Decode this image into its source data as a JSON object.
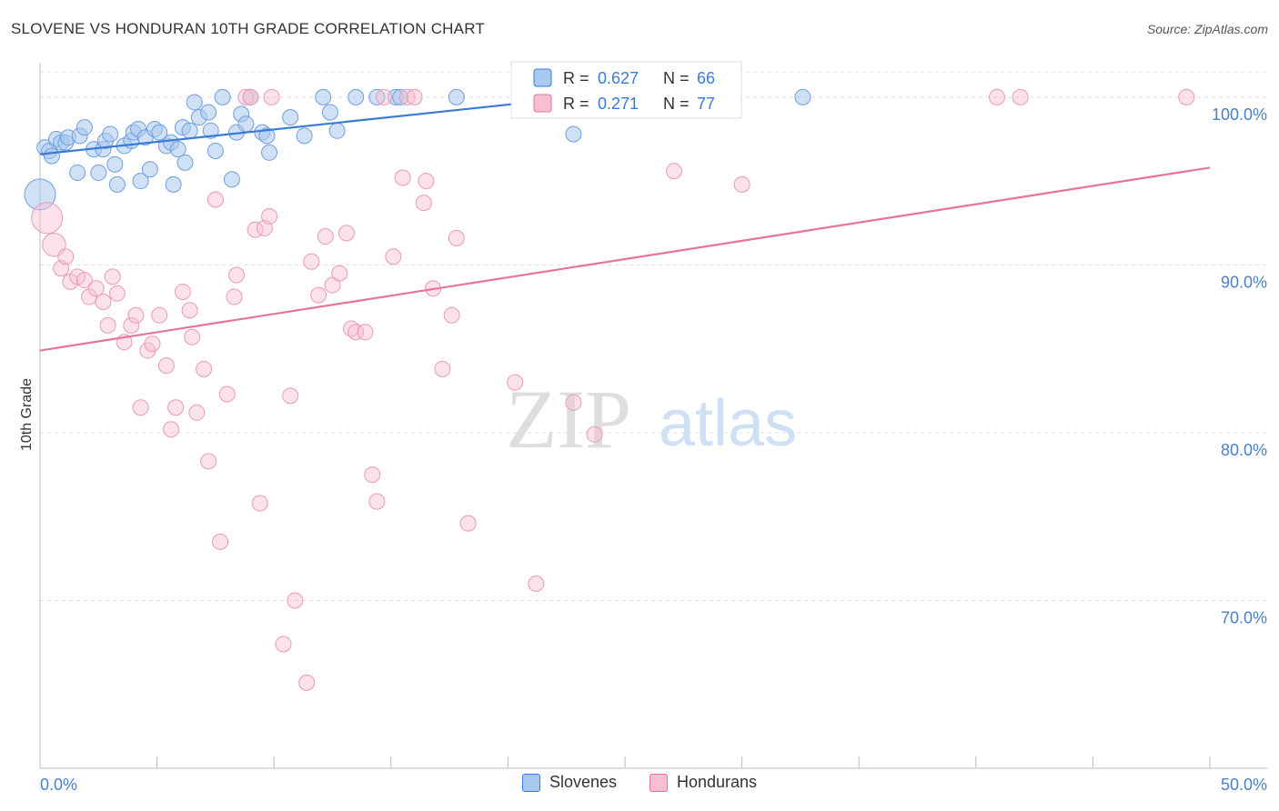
{
  "title": "SLOVENE VS HONDURAN 10TH GRADE CORRELATION CHART",
  "source": "Source: ZipAtlas.com",
  "watermark": {
    "zip": "ZIP",
    "atlas": "atlas"
  },
  "colors": {
    "blue": "#3a7bd5",
    "blue_fill": "#a9c8ef",
    "pink": "#e8739c",
    "pink_fill": "#f7bfd0",
    "axis_label": "#4a7fcc",
    "grid": "#dddddd"
  },
  "chart_data": {
    "type": "scatter",
    "title": "SLOVENE VS HONDURAN 10TH GRADE CORRELATION CHART",
    "xlabel": "",
    "ylabel": "10th Grade",
    "xlim": [
      0,
      50
    ],
    "ylim": [
      60,
      102
    ],
    "x_tick_labels": [
      "0.0%",
      "50.0%"
    ],
    "y_ticks": [
      70,
      80,
      90,
      100
    ],
    "y_tick_labels": [
      "70.0%",
      "80.0%",
      "90.0%",
      "100.0%"
    ],
    "legend_stats": [
      {
        "r_label": "R =",
        "r_value": "0.627",
        "n_label": "N =",
        "n_value": "66"
      },
      {
        "r_label": "R =",
        "r_value": "0.271",
        "n_label": "N =",
        "n_value": "77"
      }
    ],
    "series": [
      {
        "name": "Slovenes",
        "color": "#3a7bd5",
        "trend": {
          "x": [
            0,
            23
          ],
          "y": [
            96.6,
            100.0
          ]
        },
        "points": [
          [
            0.0,
            94.2,
            2
          ],
          [
            0.2,
            97.0,
            1
          ],
          [
            0.4,
            96.8,
            1
          ],
          [
            0.5,
            96.5,
            1
          ],
          [
            0.7,
            97.5,
            1
          ],
          [
            0.9,
            97.3,
            1
          ],
          [
            1.1,
            97.3,
            1
          ],
          [
            1.2,
            97.6,
            1
          ],
          [
            1.6,
            95.5,
            1
          ],
          [
            1.7,
            97.7,
            1
          ],
          [
            1.9,
            98.2,
            1
          ],
          [
            2.3,
            96.9,
            1
          ],
          [
            2.5,
            95.5,
            1
          ],
          [
            2.7,
            96.9,
            1
          ],
          [
            2.8,
            97.4,
            1
          ],
          [
            3.0,
            97.8,
            1
          ],
          [
            3.2,
            96.0,
            1
          ],
          [
            3.3,
            94.8,
            1
          ],
          [
            3.6,
            97.1,
            1
          ],
          [
            3.9,
            97.4,
            1
          ],
          [
            4.0,
            97.9,
            1
          ],
          [
            4.2,
            98.1,
            1
          ],
          [
            4.3,
            95.0,
            1
          ],
          [
            4.5,
            97.6,
            1
          ],
          [
            4.7,
            95.7,
            1
          ],
          [
            4.9,
            98.1,
            1
          ],
          [
            5.1,
            97.9,
            1
          ],
          [
            5.4,
            97.1,
            1
          ],
          [
            5.6,
            97.3,
            1
          ],
          [
            5.7,
            94.8,
            1
          ],
          [
            5.9,
            96.9,
            1
          ],
          [
            6.1,
            98.2,
            1
          ],
          [
            6.2,
            96.1,
            1
          ],
          [
            6.4,
            98.0,
            1
          ],
          [
            6.6,
            99.7,
            1
          ],
          [
            6.8,
            98.8,
            1
          ],
          [
            7.2,
            99.1,
            1
          ],
          [
            7.3,
            98.0,
            1
          ],
          [
            7.5,
            96.8,
            1
          ],
          [
            7.8,
            100.0,
            1
          ],
          [
            8.2,
            95.1,
            1
          ],
          [
            8.4,
            97.9,
            1
          ],
          [
            8.6,
            99.0,
            1
          ],
          [
            8.8,
            98.4,
            1
          ],
          [
            9.0,
            100.0,
            1
          ],
          [
            9.5,
            97.9,
            1
          ],
          [
            9.7,
            97.7,
            1
          ],
          [
            9.8,
            96.7,
            1
          ],
          [
            10.7,
            98.8,
            1
          ],
          [
            11.3,
            97.7,
            1
          ],
          [
            12.1,
            100.0,
            1
          ],
          [
            12.4,
            99.1,
            1
          ],
          [
            12.7,
            98.0,
            1
          ],
          [
            13.5,
            100.0,
            1
          ],
          [
            14.4,
            100.0,
            1
          ],
          [
            15.2,
            100.0,
            1
          ],
          [
            15.4,
            100.0,
            1
          ],
          [
            17.8,
            100.0,
            1
          ],
          [
            22.8,
            97.8,
            1
          ],
          [
            32.6,
            100.0,
            1
          ]
        ]
      },
      {
        "name": "Hondurans",
        "color": "#e8739c",
        "trend": {
          "x": [
            0,
            50
          ],
          "y": [
            84.9,
            95.8
          ]
        },
        "points": [
          [
            0.3,
            92.8,
            2
          ],
          [
            0.6,
            91.2,
            1.5
          ],
          [
            0.9,
            89.8,
            1
          ],
          [
            1.1,
            90.5,
            1
          ],
          [
            1.3,
            89.0,
            1
          ],
          [
            1.6,
            89.3,
            1
          ],
          [
            1.9,
            89.1,
            1
          ],
          [
            2.1,
            88.1,
            1
          ],
          [
            2.4,
            88.6,
            1
          ],
          [
            2.7,
            87.8,
            1
          ],
          [
            2.9,
            86.4,
            1
          ],
          [
            3.1,
            89.3,
            1
          ],
          [
            3.3,
            88.3,
            1
          ],
          [
            3.6,
            85.4,
            1
          ],
          [
            3.9,
            86.4,
            1
          ],
          [
            4.1,
            87.0,
            1
          ],
          [
            4.3,
            81.5,
            1
          ],
          [
            4.6,
            84.9,
            1
          ],
          [
            4.8,
            85.3,
            1
          ],
          [
            5.1,
            87.0,
            1
          ],
          [
            5.4,
            84.0,
            1
          ],
          [
            5.6,
            80.2,
            1
          ],
          [
            5.8,
            81.5,
            1
          ],
          [
            6.1,
            88.4,
            1
          ],
          [
            6.4,
            87.3,
            1
          ],
          [
            6.5,
            85.7,
            1
          ],
          [
            6.7,
            81.2,
            1
          ],
          [
            7.0,
            83.8,
            1
          ],
          [
            7.2,
            78.3,
            1
          ],
          [
            7.5,
            93.9,
            1
          ],
          [
            7.7,
            73.5,
            1
          ],
          [
            8.0,
            82.3,
            1
          ],
          [
            8.3,
            88.1,
            1
          ],
          [
            8.4,
            89.4,
            1
          ],
          [
            8.8,
            100.0,
            1
          ],
          [
            9.0,
            100.0,
            1
          ],
          [
            9.2,
            92.1,
            1
          ],
          [
            9.4,
            75.8,
            1
          ],
          [
            9.6,
            92.2,
            1
          ],
          [
            9.8,
            92.9,
            1
          ],
          [
            9.9,
            100.0,
            1
          ],
          [
            10.4,
            67.4,
            1
          ],
          [
            10.7,
            82.2,
            1
          ],
          [
            10.9,
            70.0,
            1
          ],
          [
            11.4,
            65.1,
            1
          ],
          [
            11.6,
            90.2,
            1
          ],
          [
            11.9,
            88.2,
            1
          ],
          [
            12.2,
            91.7,
            1
          ],
          [
            12.5,
            88.8,
            1
          ],
          [
            12.8,
            89.5,
            1
          ],
          [
            13.1,
            91.9,
            1
          ],
          [
            13.3,
            86.2,
            1
          ],
          [
            13.5,
            86.0,
            1
          ],
          [
            13.9,
            86.0,
            1
          ],
          [
            14.2,
            77.5,
            1
          ],
          [
            14.4,
            75.9,
            1
          ],
          [
            14.7,
            100.0,
            1
          ],
          [
            15.1,
            90.5,
            1
          ],
          [
            15.5,
            95.2,
            1
          ],
          [
            15.7,
            100.0,
            1
          ],
          [
            16.0,
            100.0,
            1
          ],
          [
            16.4,
            93.7,
            1
          ],
          [
            16.5,
            95.0,
            1
          ],
          [
            16.8,
            88.6,
            1
          ],
          [
            17.2,
            83.8,
            1
          ],
          [
            17.6,
            87.0,
            1
          ],
          [
            17.8,
            91.6,
            1
          ],
          [
            18.3,
            74.6,
            1
          ],
          [
            20.3,
            83.0,
            1
          ],
          [
            21.2,
            71.0,
            1
          ],
          [
            22.8,
            81.8,
            1
          ],
          [
            23.7,
            79.9,
            1
          ],
          [
            27.1,
            95.6,
            1
          ],
          [
            28.0,
            100.0,
            1
          ],
          [
            30.0,
            94.8,
            1
          ],
          [
            40.9,
            100.0,
            1
          ],
          [
            41.9,
            100.0,
            1
          ],
          [
            49.0,
            100.0,
            1
          ]
        ]
      }
    ]
  }
}
